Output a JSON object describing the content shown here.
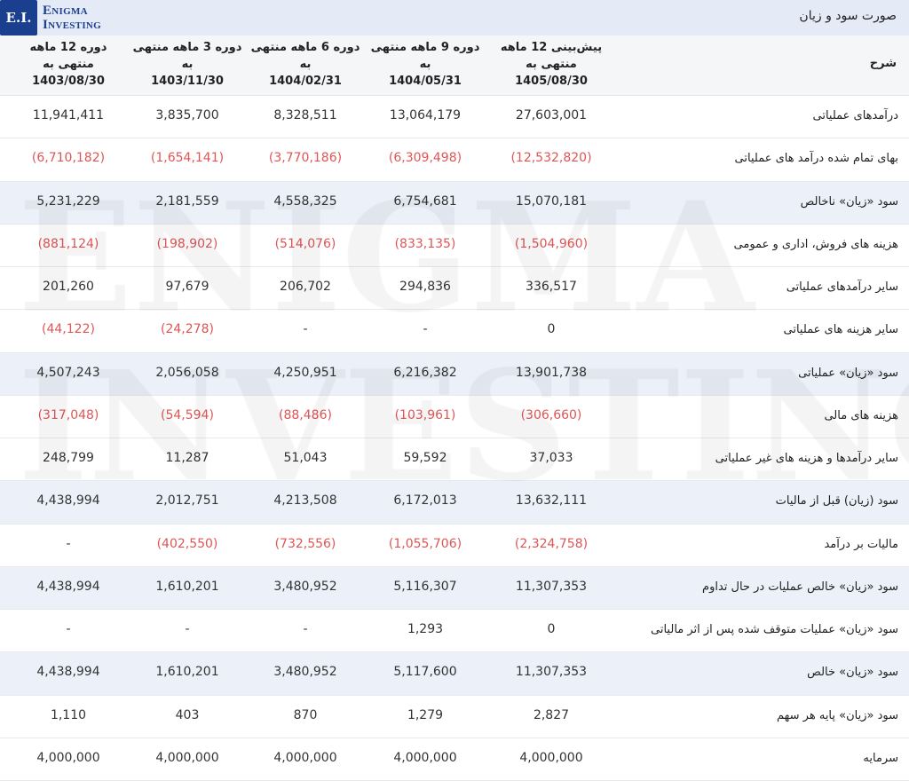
{
  "header": {
    "title": "صورت سود و زیان",
    "logo_box": "E.I.",
    "logo_line1": "Enigma",
    "logo_line2": "Investing",
    "watermark": "ENIGMA INVESTING"
  },
  "columns": {
    "label": "شرح",
    "periods": [
      {
        "title": "پیش‌بینی 12 ماهه منتهی به",
        "date": "1405/08/30"
      },
      {
        "title": "دوره 9 ماهه منتهی به",
        "date": "1404/05/31"
      },
      {
        "title": "دوره 6 ماهه منتهی به",
        "date": "1404/02/31"
      },
      {
        "title": "دوره 3 ماهه منتهی به",
        "date": "1403/11/30"
      },
      {
        "title": "دوره 12 ماهه منتهی به",
        "date": "1403/08/30"
      }
    ]
  },
  "colors": {
    "negative": "#e05555",
    "highlight_row": "#ebf0f9",
    "brand": "#1a3f8f"
  },
  "rows": [
    {
      "label": "درآمدهای عملیاتی",
      "highlight": false,
      "values": [
        "27,603,001",
        "13,064,179",
        "8,328,511",
        "3,835,700",
        "11,941,411"
      ]
    },
    {
      "label": "بهای تمام شده درآمد های عملیاتی",
      "highlight": false,
      "values": [
        "(12,532,820)",
        "(6,309,498)",
        "(3,770,186)",
        "(1,654,141)",
        "(6,710,182)"
      ]
    },
    {
      "label": "سود «زیان» ناخالص",
      "highlight": true,
      "values": [
        "15,070,181",
        "6,754,681",
        "4,558,325",
        "2,181,559",
        "5,231,229"
      ]
    },
    {
      "label": "هزینه های فروش، اداری و عمومی",
      "highlight": false,
      "values": [
        "(1,504,960)",
        "(833,135)",
        "(514,076)",
        "(198,902)",
        "(881,124)"
      ]
    },
    {
      "label": "سایر درآمدهای عملیاتی",
      "highlight": false,
      "values": [
        "336,517",
        "294,836",
        "206,702",
        "97,679",
        "201,260"
      ]
    },
    {
      "label": "سایر هزینه های عملیاتی",
      "highlight": false,
      "values": [
        "0",
        "-",
        "-",
        "(24,278)",
        "(44,122)"
      ]
    },
    {
      "label": "سود «زیان» عملیاتی",
      "highlight": true,
      "values": [
        "13,901,738",
        "6,216,382",
        "4,250,951",
        "2,056,058",
        "4,507,243"
      ]
    },
    {
      "label": "هزینه های مالی",
      "highlight": false,
      "values": [
        "(306,660)",
        "(103,961)",
        "(88,486)",
        "(54,594)",
        "(317,048)"
      ]
    },
    {
      "label": "سایر درآمدها و هزینه های غیر عملیاتی",
      "highlight": false,
      "values": [
        "37,033",
        "59,592",
        "51,043",
        "11,287",
        "248,799"
      ]
    },
    {
      "label": "سود (زیان) قبل از مالیات",
      "highlight": true,
      "values": [
        "13,632,111",
        "6,172,013",
        "4,213,508",
        "2,012,751",
        "4,438,994"
      ]
    },
    {
      "label": "مالیات بر درآمد",
      "highlight": false,
      "values": [
        "(2,324,758)",
        "(1,055,706)",
        "(732,556)",
        "(402,550)",
        "-"
      ]
    },
    {
      "label": "سود «زیان» خالص عملیات در حال تداوم",
      "highlight": true,
      "values": [
        "11,307,353",
        "5,116,307",
        "3,480,952",
        "1,610,201",
        "4,438,994"
      ]
    },
    {
      "label": "سود «زیان» عملیات متوقف شده پس از اثر مالیاتی",
      "highlight": false,
      "values": [
        "0",
        "1,293",
        "-",
        "-",
        "-"
      ]
    },
    {
      "label": "سود «زیان» خالص",
      "highlight": true,
      "values": [
        "11,307,353",
        "5,117,600",
        "3,480,952",
        "1,610,201",
        "4,438,994"
      ]
    },
    {
      "label": "سود «زیان» پایه هر سهم",
      "highlight": false,
      "values": [
        "2,827",
        "1,279",
        "870",
        "403",
        "1,110"
      ]
    },
    {
      "label": "سرمایه",
      "highlight": false,
      "values": [
        "4,000,000",
        "4,000,000",
        "4,000,000",
        "4,000,000",
        "4,000,000"
      ]
    }
  ]
}
